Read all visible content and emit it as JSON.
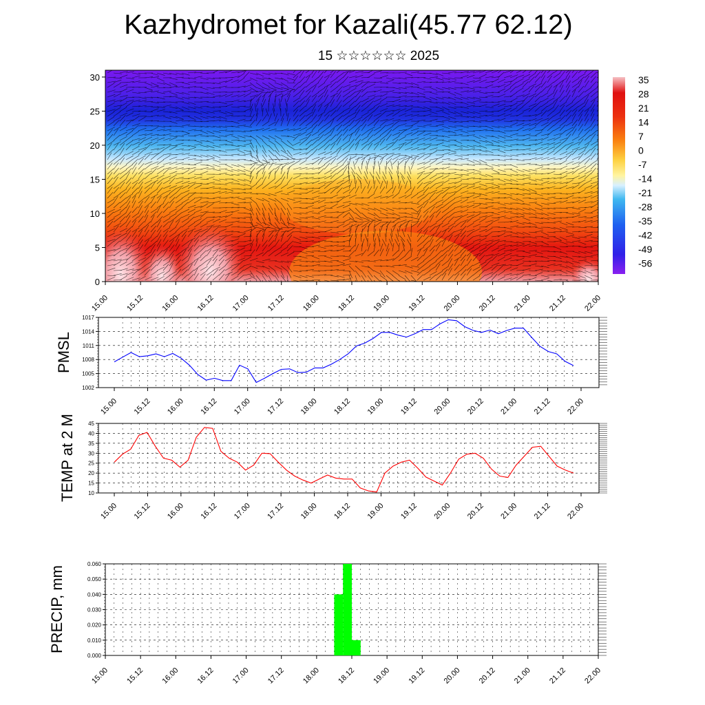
{
  "title": "Kazhydromet for Kazali(45.77 62.12)",
  "subtitle": "15 ☆☆☆☆☆☆ 2025",
  "time_labels": [
    "15.00",
    "15.12",
    "16.00",
    "16.12",
    "17.00",
    "17.12",
    "18.00",
    "18.12",
    "19.00",
    "19.12",
    "20.00",
    "20.12",
    "21.00",
    "21.12",
    "22.00"
  ],
  "chart_data": [
    {
      "type": "heatmap",
      "name": "temperature-wind cross-section",
      "y_ticks": [
        0,
        5,
        10,
        15,
        20,
        25,
        30
      ],
      "ylim": [
        0,
        31
      ],
      "colorbar": {
        "labels": [
          "35",
          "28",
          "21",
          "14",
          "7",
          "0",
          "-7",
          "-14",
          "-21",
          "-28",
          "-35",
          "-42",
          "-49",
          "-56"
        ],
        "colors": [
          "#f4b3b8",
          "#e01010",
          "#f05010",
          "#fa8a10",
          "#fcc32a",
          "#fde85a",
          "#fff0a0",
          "#d8f0ff",
          "#40b8f0",
          "#1e6ef0",
          "#2a28e0",
          "#6a10e8"
        ]
      },
      "xlabels": [
        "15.00",
        "15.12",
        "16.00",
        "16.12",
        "17.00",
        "17.12",
        "18.00",
        "18.12",
        "19.00",
        "19.12",
        "20.00",
        "20.12",
        "21.00",
        "21.12",
        "22.00"
      ]
    },
    {
      "type": "line",
      "ylabel": "PMSL",
      "ylim": [
        1002,
        1017
      ],
      "y_ticks": [
        "1002",
        "1005",
        "1008",
        "1011",
        "1014",
        "1017"
      ],
      "color": "#0000ff",
      "series": [
        {
          "values": [
            1007.5,
            1008.5,
            1009.5,
            1008.6,
            1008.8,
            1009.2,
            1008.6,
            1009.3,
            1008.3,
            1006.8,
            1004.8,
            1003.6,
            1004.0,
            1003.5,
            1003.5,
            1006.8,
            1006.0,
            1003.1,
            1004.0,
            1005.0,
            1005.9,
            1006.0,
            1005.2,
            1005.3,
            1006.2,
            1006.2,
            1007.0,
            1008.0,
            1009.2,
            1010.9,
            1011.5,
            1012.5,
            1013.8,
            1013.8,
            1013.2,
            1012.8,
            1013.5,
            1014.4,
            1014.4,
            1015.6,
            1016.5,
            1016.3,
            1015.0,
            1014.2,
            1013.8,
            1014.3,
            1013.5,
            1014.2,
            1014.7,
            1014.7,
            1012.7,
            1010.8,
            1009.7,
            1009.2,
            1007.6,
            1006.7
          ]
        }
      ]
    },
    {
      "type": "line",
      "ylabel": "TEMP at 2 M",
      "ylim": [
        10,
        45
      ],
      "y_ticks": [
        "10",
        "15",
        "20",
        "25",
        "30",
        "35",
        "40",
        "45"
      ],
      "color": "#ff0000",
      "series": [
        {
          "values": [
            25.5,
            29.5,
            32.0,
            39.0,
            40.5,
            33.5,
            27.5,
            26.5,
            23.0,
            26.5,
            38.0,
            43.0,
            42.5,
            31.0,
            27.5,
            25.5,
            21.5,
            24.0,
            30.0,
            29.8,
            25.5,
            21.5,
            18.5,
            16.5,
            15.0,
            17.0,
            19.0,
            17.5,
            17.0,
            17.0,
            12.5,
            11.0,
            10.5,
            20.0,
            23.5,
            25.5,
            26.5,
            22.5,
            18.0,
            16.0,
            14.0,
            20.0,
            27.0,
            29.5,
            30.0,
            27.5,
            22.0,
            18.5,
            17.8,
            24.0,
            28.5,
            33.0,
            33.5,
            28.5,
            23.5,
            21.5,
            20.0
          ]
        }
      ]
    },
    {
      "type": "bar",
      "ylabel": "PRECIP, mm",
      "ylim": [
        0,
        0.06
      ],
      "y_ticks": [
        "0.000",
        "0.010",
        "0.020",
        "0.030",
        "0.040",
        "0.050",
        "0.060"
      ],
      "color": "#00ff00",
      "bars": [
        {
          "start": "18.06",
          "value": 0.04
        },
        {
          "start": "18.09",
          "value": 0.06
        },
        {
          "start": "18.12",
          "value": 0.01
        }
      ]
    }
  ]
}
